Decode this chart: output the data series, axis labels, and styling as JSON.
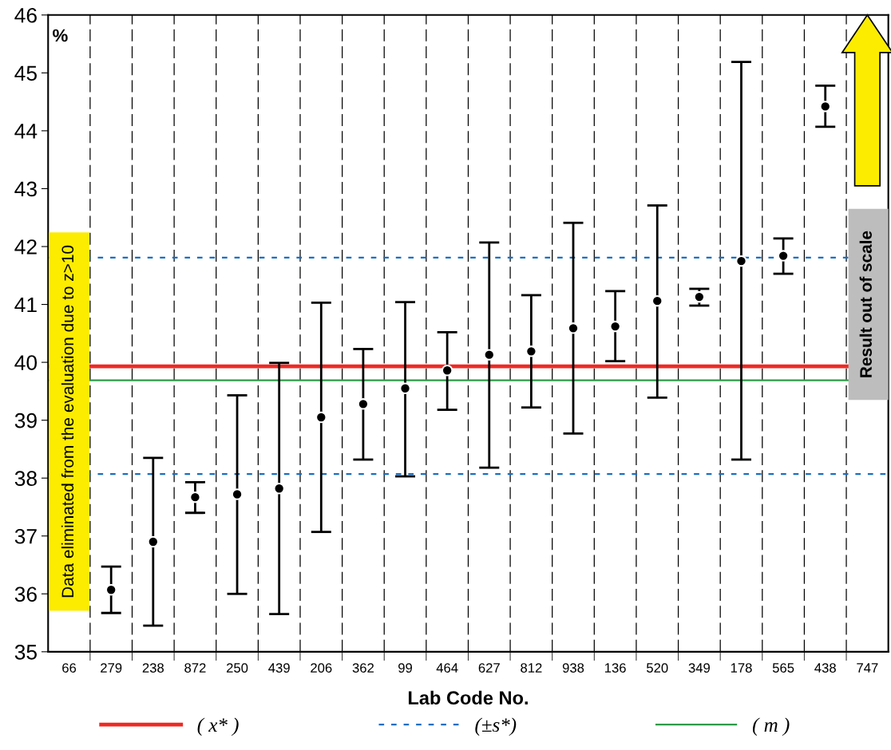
{
  "chart_data": {
    "type": "scatter",
    "xlabel": "Lab Code No.",
    "ylabel": "%",
    "categories": [
      "66",
      "279",
      "238",
      "872",
      "250",
      "439",
      "206",
      "362",
      "99",
      "464",
      "627",
      "812",
      "938",
      "136",
      "520",
      "349",
      "178",
      "565",
      "438",
      "747"
    ],
    "series": [
      {
        "color": "#000000",
        "marker": "circle",
        "values": [
          null,
          36.07,
          36.9,
          37.67,
          37.72,
          37.82,
          39.05,
          39.28,
          39.55,
          39.86,
          40.13,
          40.19,
          40.59,
          40.62,
          41.06,
          41.13,
          41.75,
          41.84,
          44.42,
          null
        ],
        "errors": [
          null,
          [
            35.67,
            36.47
          ],
          [
            35.45,
            38.35
          ],
          [
            37.4,
            37.93
          ],
          [
            36.0,
            39.43
          ],
          [
            35.65,
            39.99
          ],
          [
            37.07,
            41.03
          ],
          [
            38.32,
            40.23
          ],
          [
            38.03,
            41.04
          ],
          [
            39.18,
            40.52
          ],
          [
            38.18,
            42.07
          ],
          [
            39.22,
            41.16
          ],
          [
            38.77,
            42.41
          ],
          [
            40.02,
            41.23
          ],
          [
            39.39,
            42.71
          ],
          [
            40.98,
            41.27
          ],
          [
            38.32,
            45.19
          ],
          [
            41.53,
            42.14
          ],
          [
            44.07,
            44.78
          ],
          null
        ]
      }
    ],
    "ylim": [
      35,
      46
    ],
    "yticks": [
      35,
      36,
      37,
      38,
      39,
      40,
      41,
      42,
      43,
      44,
      45,
      46
    ],
    "ref_lines": [
      {
        "axis": "y",
        "value": 39.93,
        "label": "( x* )",
        "color": "#ee2a24",
        "line_style": "solid"
      },
      {
        "axis": "y",
        "value": 41.81,
        "label": "(±s*)",
        "color": "#1a6fc4",
        "line_style": "dashed"
      },
      {
        "axis": "y",
        "value": 38.07,
        "color": "#1a6fc4",
        "line_style": "dashed"
      },
      {
        "axis": "y",
        "value": 39.69,
        "label": "( m )",
        "color": "#2e9a48",
        "line_style": "solid"
      }
    ],
    "annotations": [
      "Data eliminated from the evaluation due to z>10",
      "Result out of scale"
    ],
    "grid": "x",
    "legend": "bottom"
  }
}
